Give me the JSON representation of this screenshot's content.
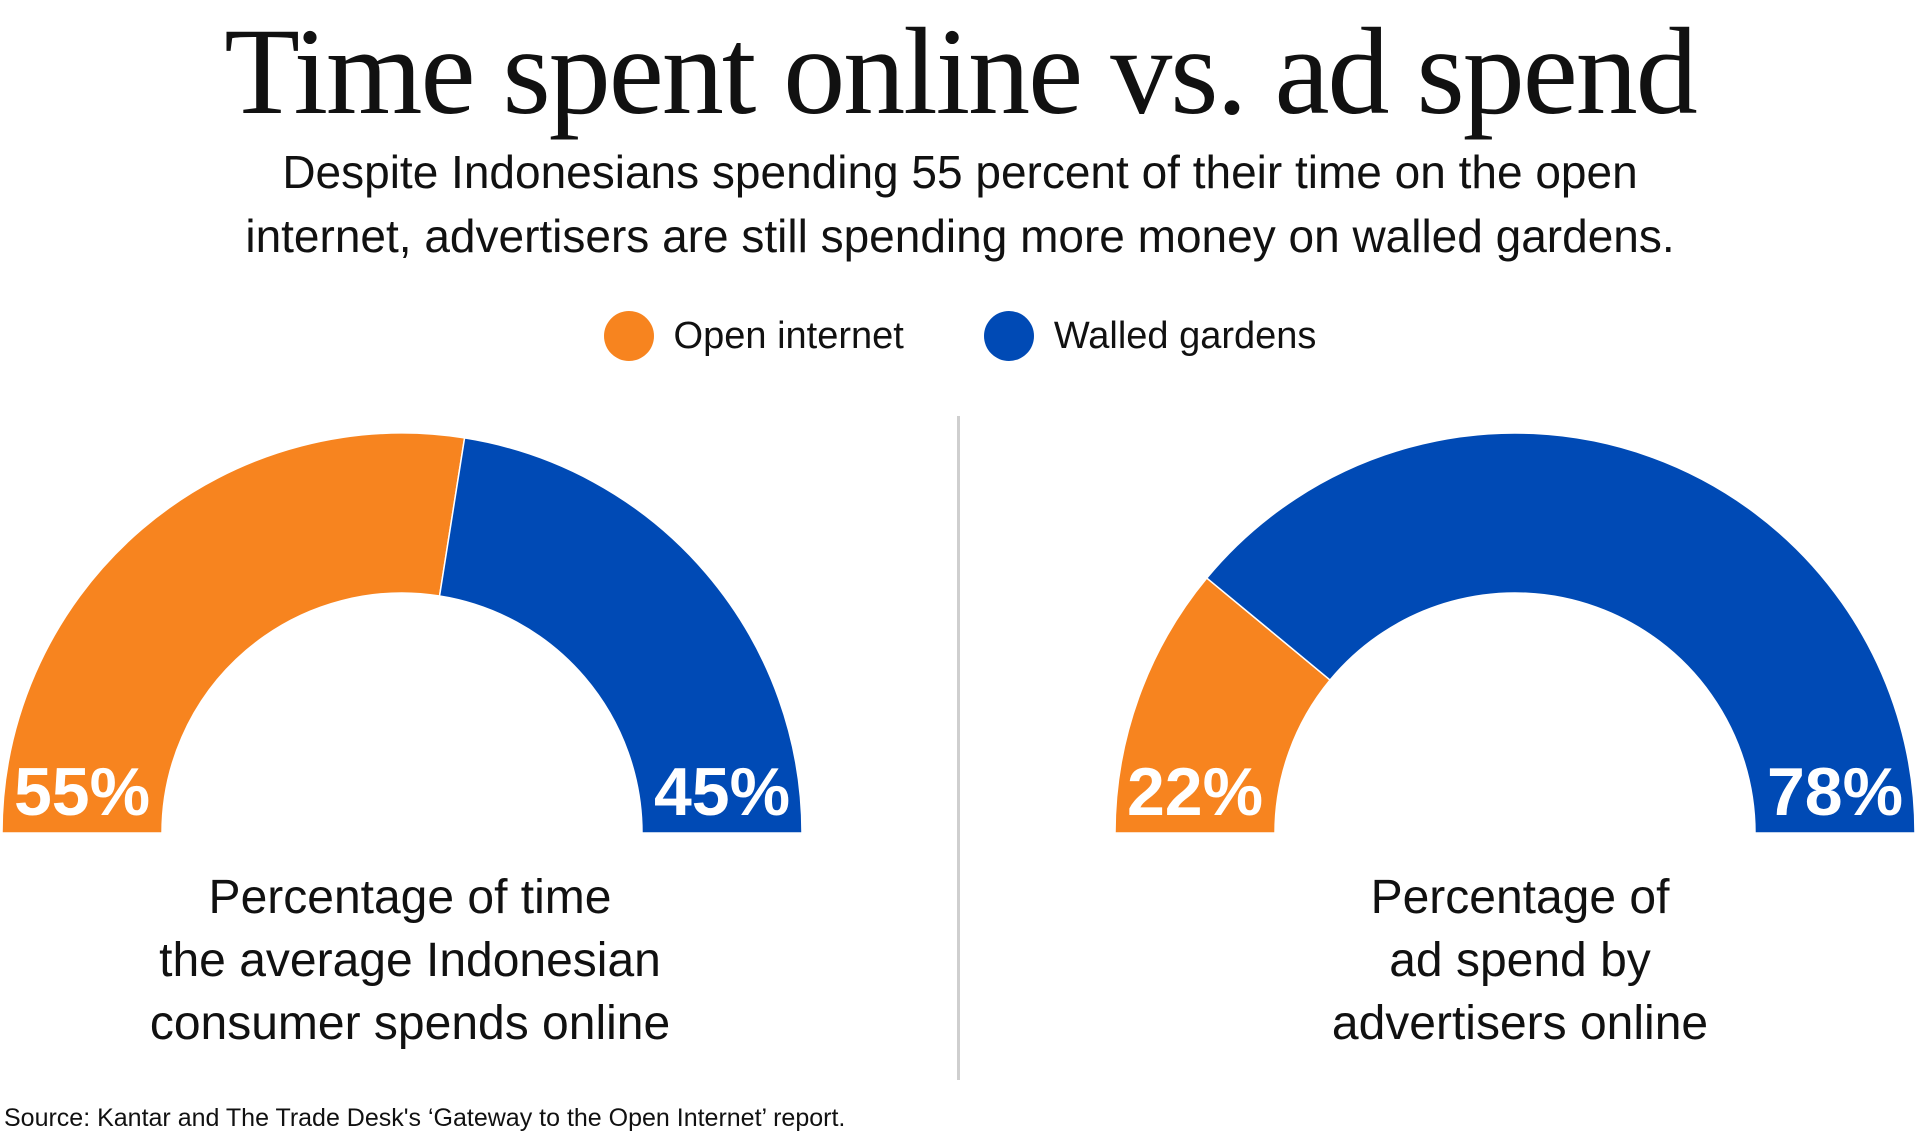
{
  "header": {
    "title": "Time spent online vs. ad spend",
    "subtitle_lines": [
      "Despite Indonesians spending 55 percent of their time on the open",
      "internet, advertisers are still spending more money on walled gardens."
    ]
  },
  "legend": [
    {
      "label": "Open internet",
      "color": "#F7841F"
    },
    {
      "label": "Walled gardens",
      "color": "#004AB5"
    }
  ],
  "chart_data": [
    {
      "type": "pie",
      "variant": "semicircle-donut",
      "categories": [
        "Open internet",
        "Walled gardens"
      ],
      "values": [
        55,
        45
      ],
      "value_labels": [
        "55%",
        "45%"
      ],
      "colors": [
        "#F7841F",
        "#004AB5"
      ],
      "caption_lines": [
        "Percentage of time",
        "the average Indonesian",
        "consumer spends online"
      ]
    },
    {
      "type": "pie",
      "variant": "semicircle-donut",
      "categories": [
        "Open internet",
        "Walled gardens"
      ],
      "values": [
        22,
        78
      ],
      "value_labels": [
        "22%",
        "78%"
      ],
      "colors": [
        "#F7841F",
        "#004AB5"
      ],
      "caption_lines": [
        "Percentage of",
        "ad spend by",
        "advertisers online"
      ]
    }
  ],
  "source": "Source: Kantar and The Trade Desk's ‘Gateway to the Open Internet’ report."
}
